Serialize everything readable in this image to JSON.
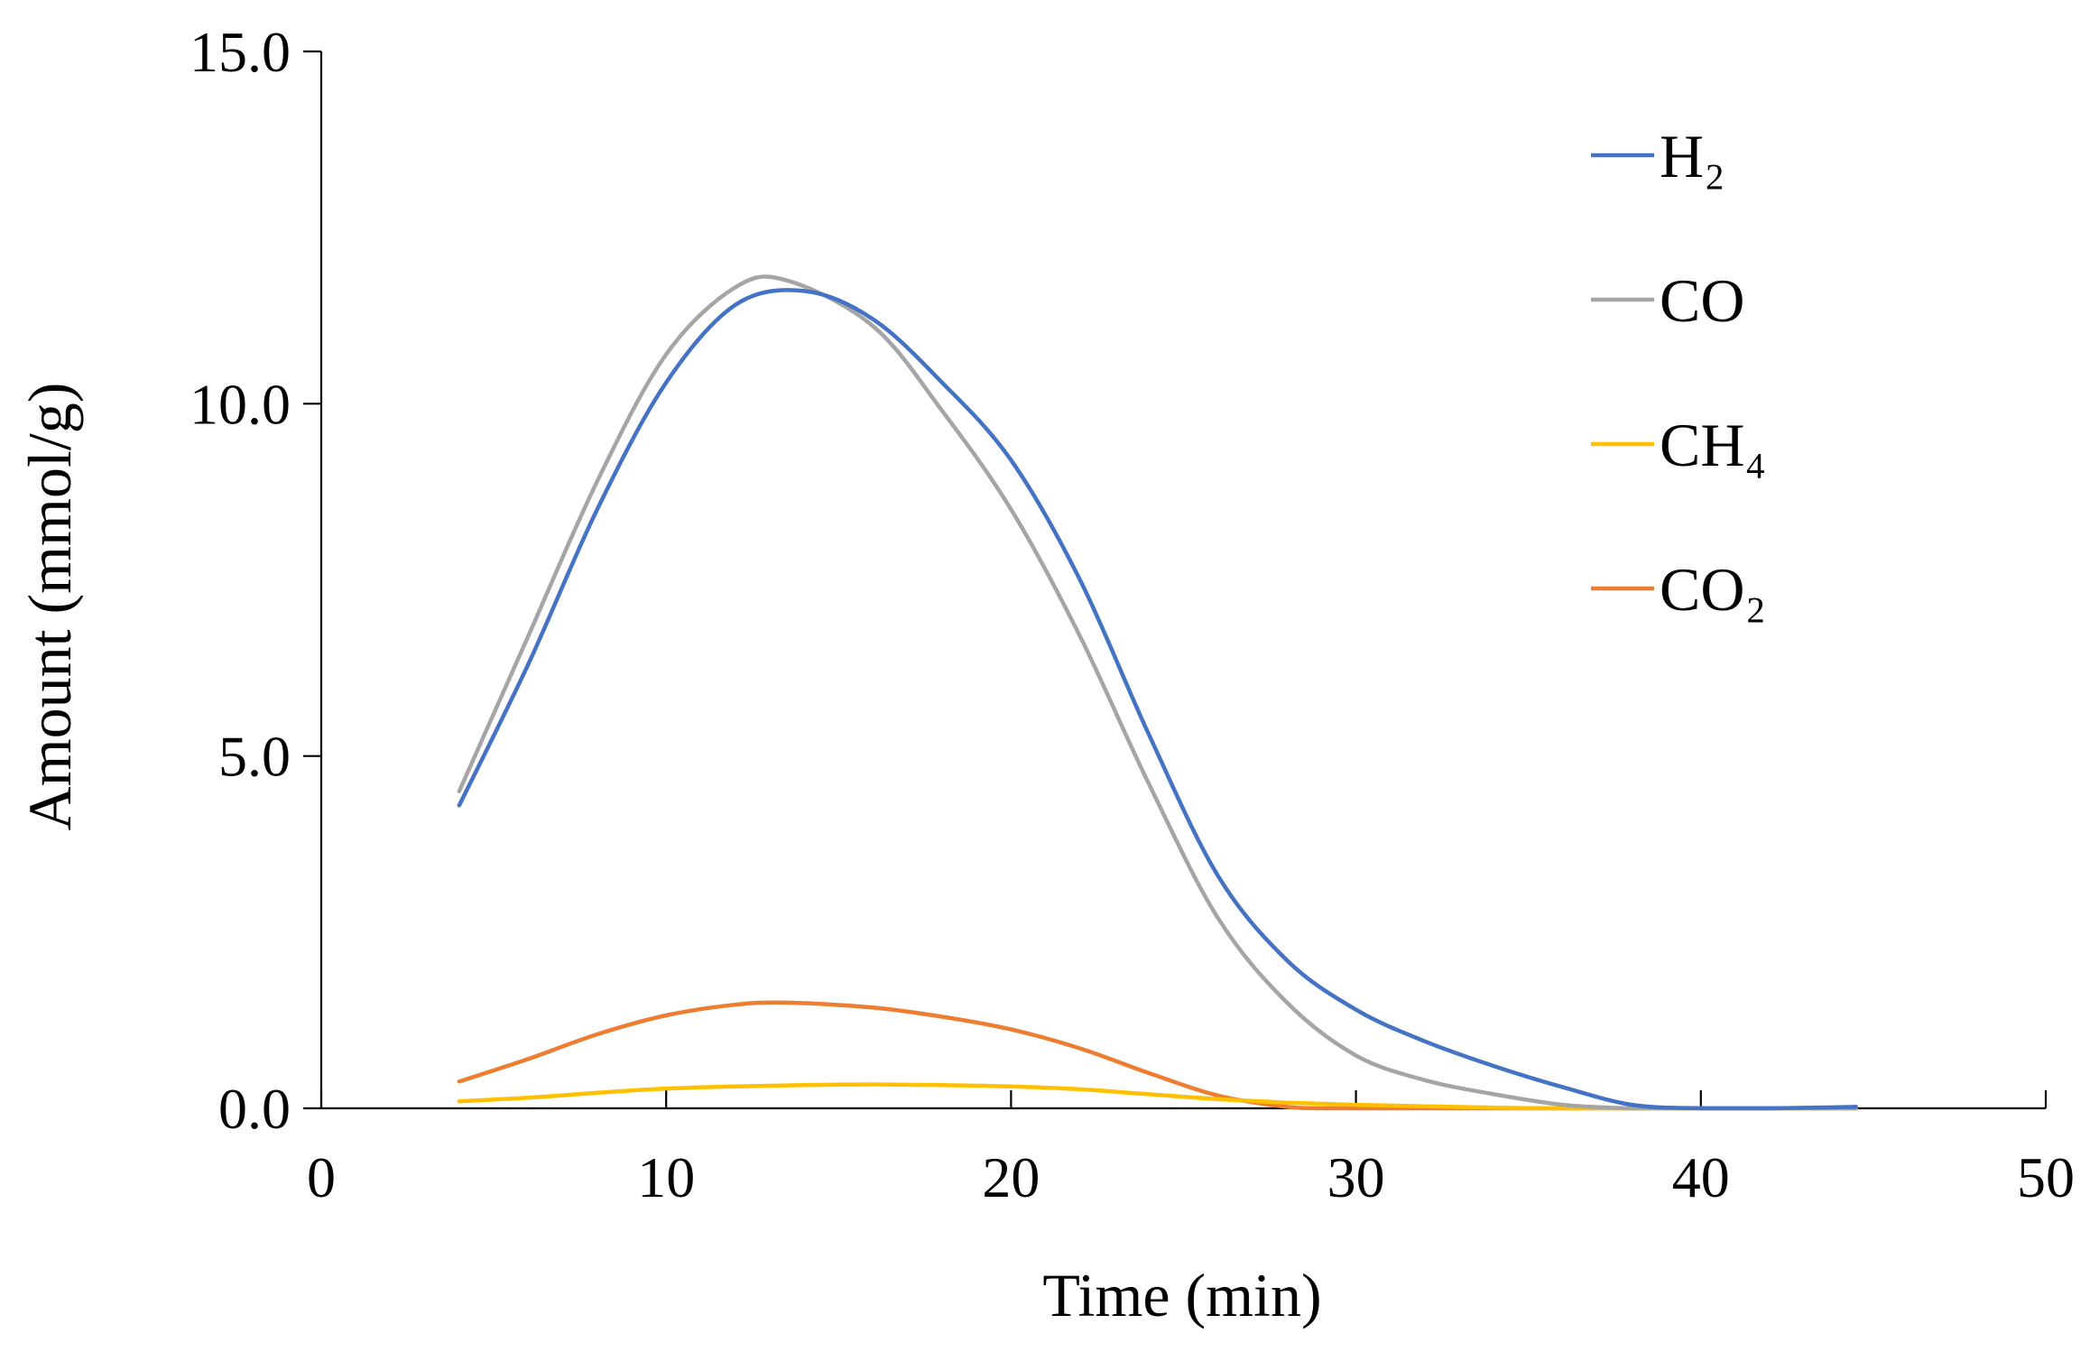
{
  "chart_data": {
    "type": "line",
    "title": "",
    "xlabel": "Time (min)",
    "ylabel": "Amount (mmol/g)",
    "xlim": [
      0,
      50
    ],
    "ylim": [
      0,
      15
    ],
    "xticks": [
      0,
      10,
      20,
      30,
      40,
      50
    ],
    "xtick_labels": [
      "0",
      "10",
      "20",
      "30",
      "40",
      "50"
    ],
    "yticks": [
      0,
      5,
      10,
      15
    ],
    "ytick_labels": [
      "0.0",
      "5.0",
      "10.0",
      "15.0"
    ],
    "grid": false,
    "legend_position": "top-right",
    "series": [
      {
        "name": "H₂",
        "color": "#4472C4",
        "x": [
          4,
          6,
          8,
          10,
          12,
          14,
          16,
          18,
          20,
          22,
          24,
          26,
          28,
          30,
          32,
          34,
          36,
          38,
          40,
          42,
          44.5
        ],
        "y": [
          4.3,
          6.3,
          8.5,
          10.3,
          11.4,
          11.6,
          11.2,
          10.3,
          9.2,
          7.5,
          5.3,
          3.3,
          2.1,
          1.4,
          0.95,
          0.6,
          0.3,
          0.05,
          0.0,
          0.0,
          0.02
        ]
      },
      {
        "name": "CO",
        "color": "#A5A5A5",
        "x": [
          4,
          6,
          8,
          10,
          12,
          13.5,
          16,
          18,
          20,
          22,
          24,
          26,
          28,
          30,
          32,
          34,
          36,
          38,
          40,
          42,
          44.5
        ],
        "y": [
          4.5,
          6.7,
          8.9,
          10.7,
          11.65,
          11.75,
          11.1,
          9.9,
          8.5,
          6.7,
          4.6,
          2.7,
          1.5,
          0.75,
          0.4,
          0.2,
          0.05,
          0.0,
          0.0,
          0.0,
          0.0
        ]
      },
      {
        "name": "CH₄",
        "color": "#FFC000",
        "x": [
          4,
          6,
          8,
          10,
          12,
          14,
          16,
          18,
          20,
          22,
          24,
          26,
          28,
          30,
          32,
          34,
          36,
          38,
          40,
          42,
          44.5
        ],
        "y": [
          0.1,
          0.15,
          0.22,
          0.28,
          0.31,
          0.33,
          0.34,
          0.33,
          0.31,
          0.27,
          0.2,
          0.13,
          0.08,
          0.05,
          0.03,
          0.01,
          0.0,
          0.0,
          0.0,
          0.0,
          0.0
        ]
      },
      {
        "name": "CO₂",
        "color": "#ED7D31",
        "x": [
          4,
          6,
          8,
          10,
          12,
          13.5,
          16,
          18,
          20,
          22,
          24,
          26,
          28,
          29,
          32,
          34,
          36,
          38,
          40,
          42,
          44.5
        ],
        "y": [
          0.38,
          0.7,
          1.05,
          1.32,
          1.47,
          1.5,
          1.43,
          1.3,
          1.12,
          0.85,
          0.5,
          0.18,
          0.02,
          0.0,
          0.0,
          0.0,
          0.0,
          0.0,
          0.0,
          0.0,
          0.0
        ]
      }
    ]
  }
}
